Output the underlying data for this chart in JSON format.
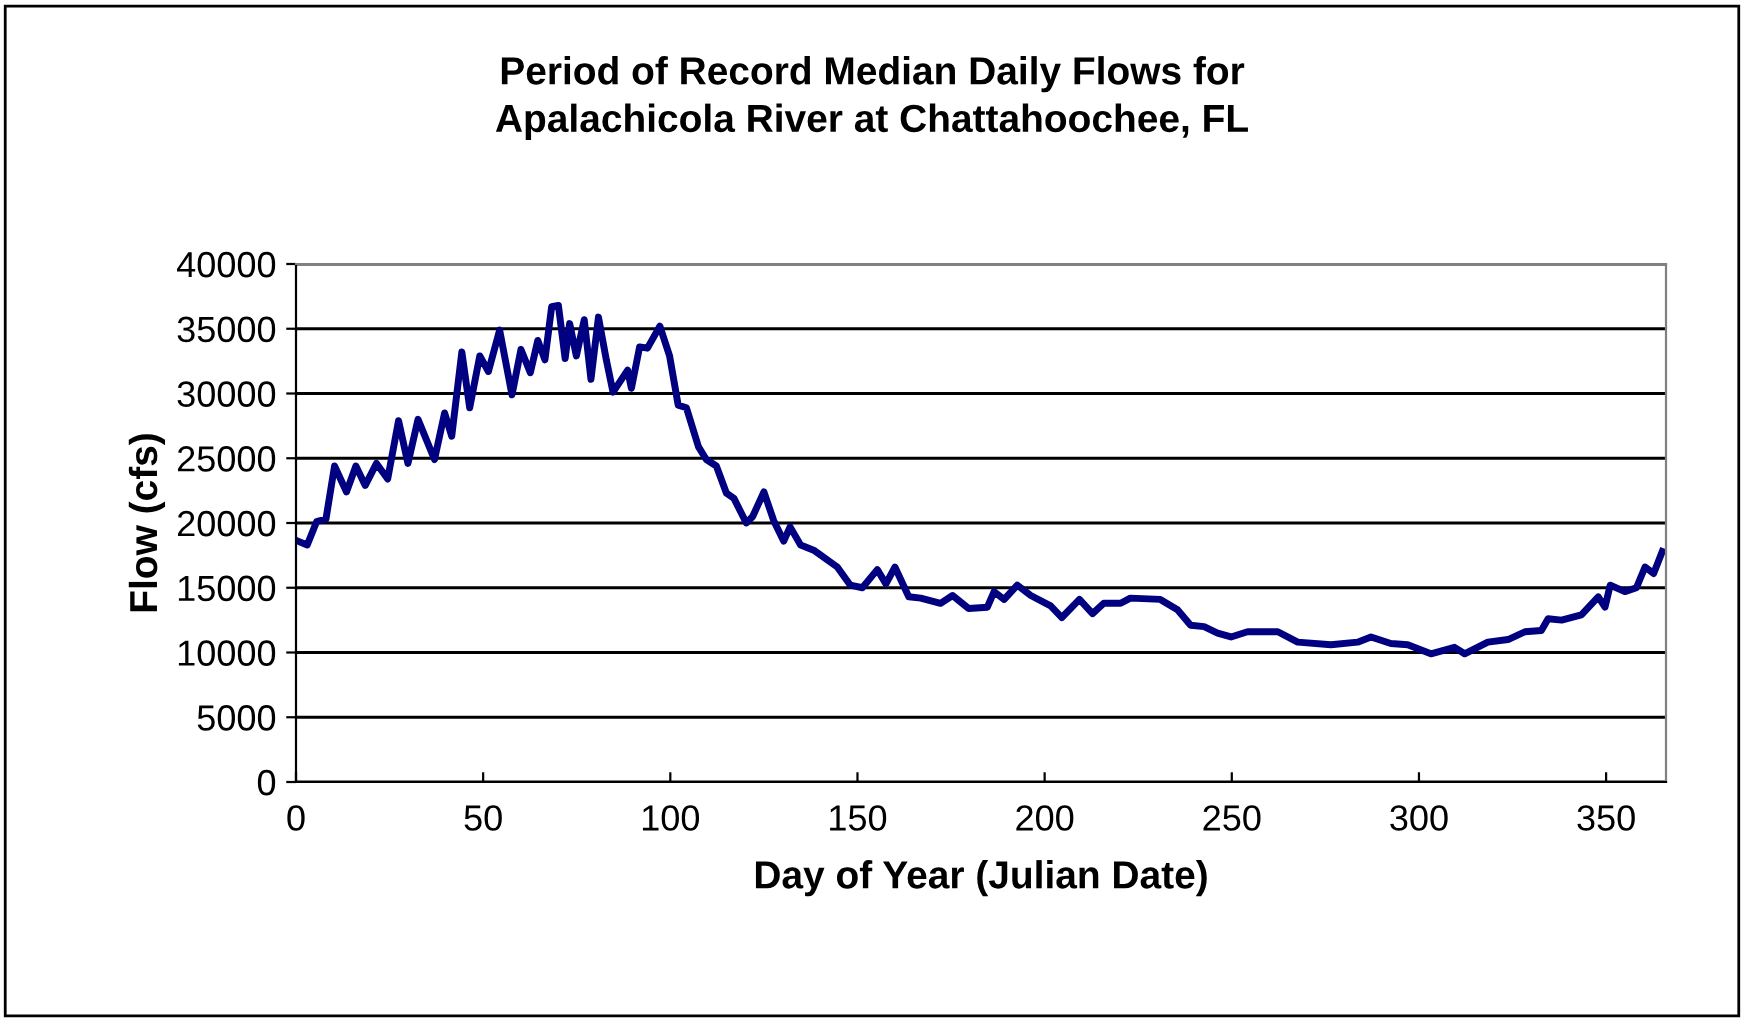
{
  "chart_data": {
    "type": "line",
    "title": "Period of Record Median Daily Flows for\nApalachicola River at Chattahoochee, FL",
    "xlabel": "Day of Year (Julian Date)",
    "ylabel": "Flow (cfs)",
    "xlim": [
      0,
      366
    ],
    "xticks": [
      0,
      50,
      100,
      150,
      200,
      250,
      300,
      350
    ],
    "ylim": [
      0,
      40000
    ],
    "yticks": [
      0,
      5000,
      10000,
      15000,
      20000,
      25000,
      30000,
      35000,
      40000
    ],
    "grid": "y",
    "legend": false,
    "marker": "none",
    "line_style": "solid",
    "series": [
      {
        "color": "#000080",
        "x": [
          0.5,
          3,
          5.5,
          8,
          10.3,
          13.5,
          16,
          18.5,
          21.5,
          24.5,
          27.4,
          29.9,
          32.6,
          37,
          39.7,
          41.6,
          44.3,
          46.4,
          49.1,
          51.4,
          54.4,
          57.7,
          60.1,
          62.6,
          64.6,
          66.5,
          68.3,
          70.1,
          71.9,
          73.1,
          74.9,
          77,
          78.8,
          80.8,
          82.9,
          84.7,
          88.6,
          89.6,
          91.8,
          93.9,
          97.2,
          99.8,
          102.1,
          104.3,
          107.5,
          109.6,
          112.3,
          115,
          117,
          120.3,
          122,
          125,
          127.6,
          130.3,
          132,
          134.8,
          138.3,
          144.6,
          148.1,
          151.3,
          155.3,
          157.6,
          160,
          163.7,
          166.9,
          172.2,
          175.4,
          179.7,
          184.7,
          186.5,
          189.2,
          192.7,
          196.3,
          201.6,
          204.6,
          209.3,
          212.8,
          215.8,
          220.3,
          222.9,
          230.9,
          235.5,
          239,
          242.6,
          246.2,
          249.8,
          254.2,
          262.3,
          267.6,
          276.5,
          283.6,
          287.2,
          292.5,
          297,
          303.2,
          309.5,
          312.2,
          318.4,
          323.8,
          328.3,
          332.7,
          334.5,
          338.1,
          343.4,
          347.9,
          349.7,
          351.1,
          355,
          358.1,
          360.4,
          362.7,
          365
        ],
        "values": [
          18600,
          18300,
          20100,
          20300,
          24400,
          22400,
          24400,
          22900,
          24600,
          23400,
          27900,
          24600,
          28000,
          24900,
          28500,
          26700,
          33200,
          28900,
          32900,
          31700,
          34900,
          29900,
          33400,
          31600,
          34100,
          32600,
          36700,
          36800,
          32700,
          35400,
          32900,
          35700,
          31100,
          35900,
          32600,
          30100,
          31800,
          30400,
          33600,
          33500,
          35200,
          32900,
          29100,
          28900,
          25900,
          24900,
          24400,
          22300,
          21900,
          20000,
          20500,
          22400,
          20200,
          18600,
          19700,
          18300,
          17900,
          16600,
          15200,
          15000,
          16400,
          15300,
          16600,
          14300,
          14200,
          13800,
          14400,
          13400,
          13500,
          14700,
          14100,
          15200,
          14400,
          13600,
          12700,
          14100,
          13000,
          13800,
          13800,
          14200,
          14100,
          13300,
          12100,
          12000,
          11500,
          11200,
          11600,
          11600,
          10800,
          10600,
          10800,
          11200,
          10700,
          10600,
          9900,
          10400,
          9900,
          10800,
          11000,
          11600,
          11700,
          12600,
          12500,
          12900,
          14300,
          13500,
          15200,
          14700,
          15000,
          16600,
          16100,
          17800
        ]
      }
    ]
  }
}
